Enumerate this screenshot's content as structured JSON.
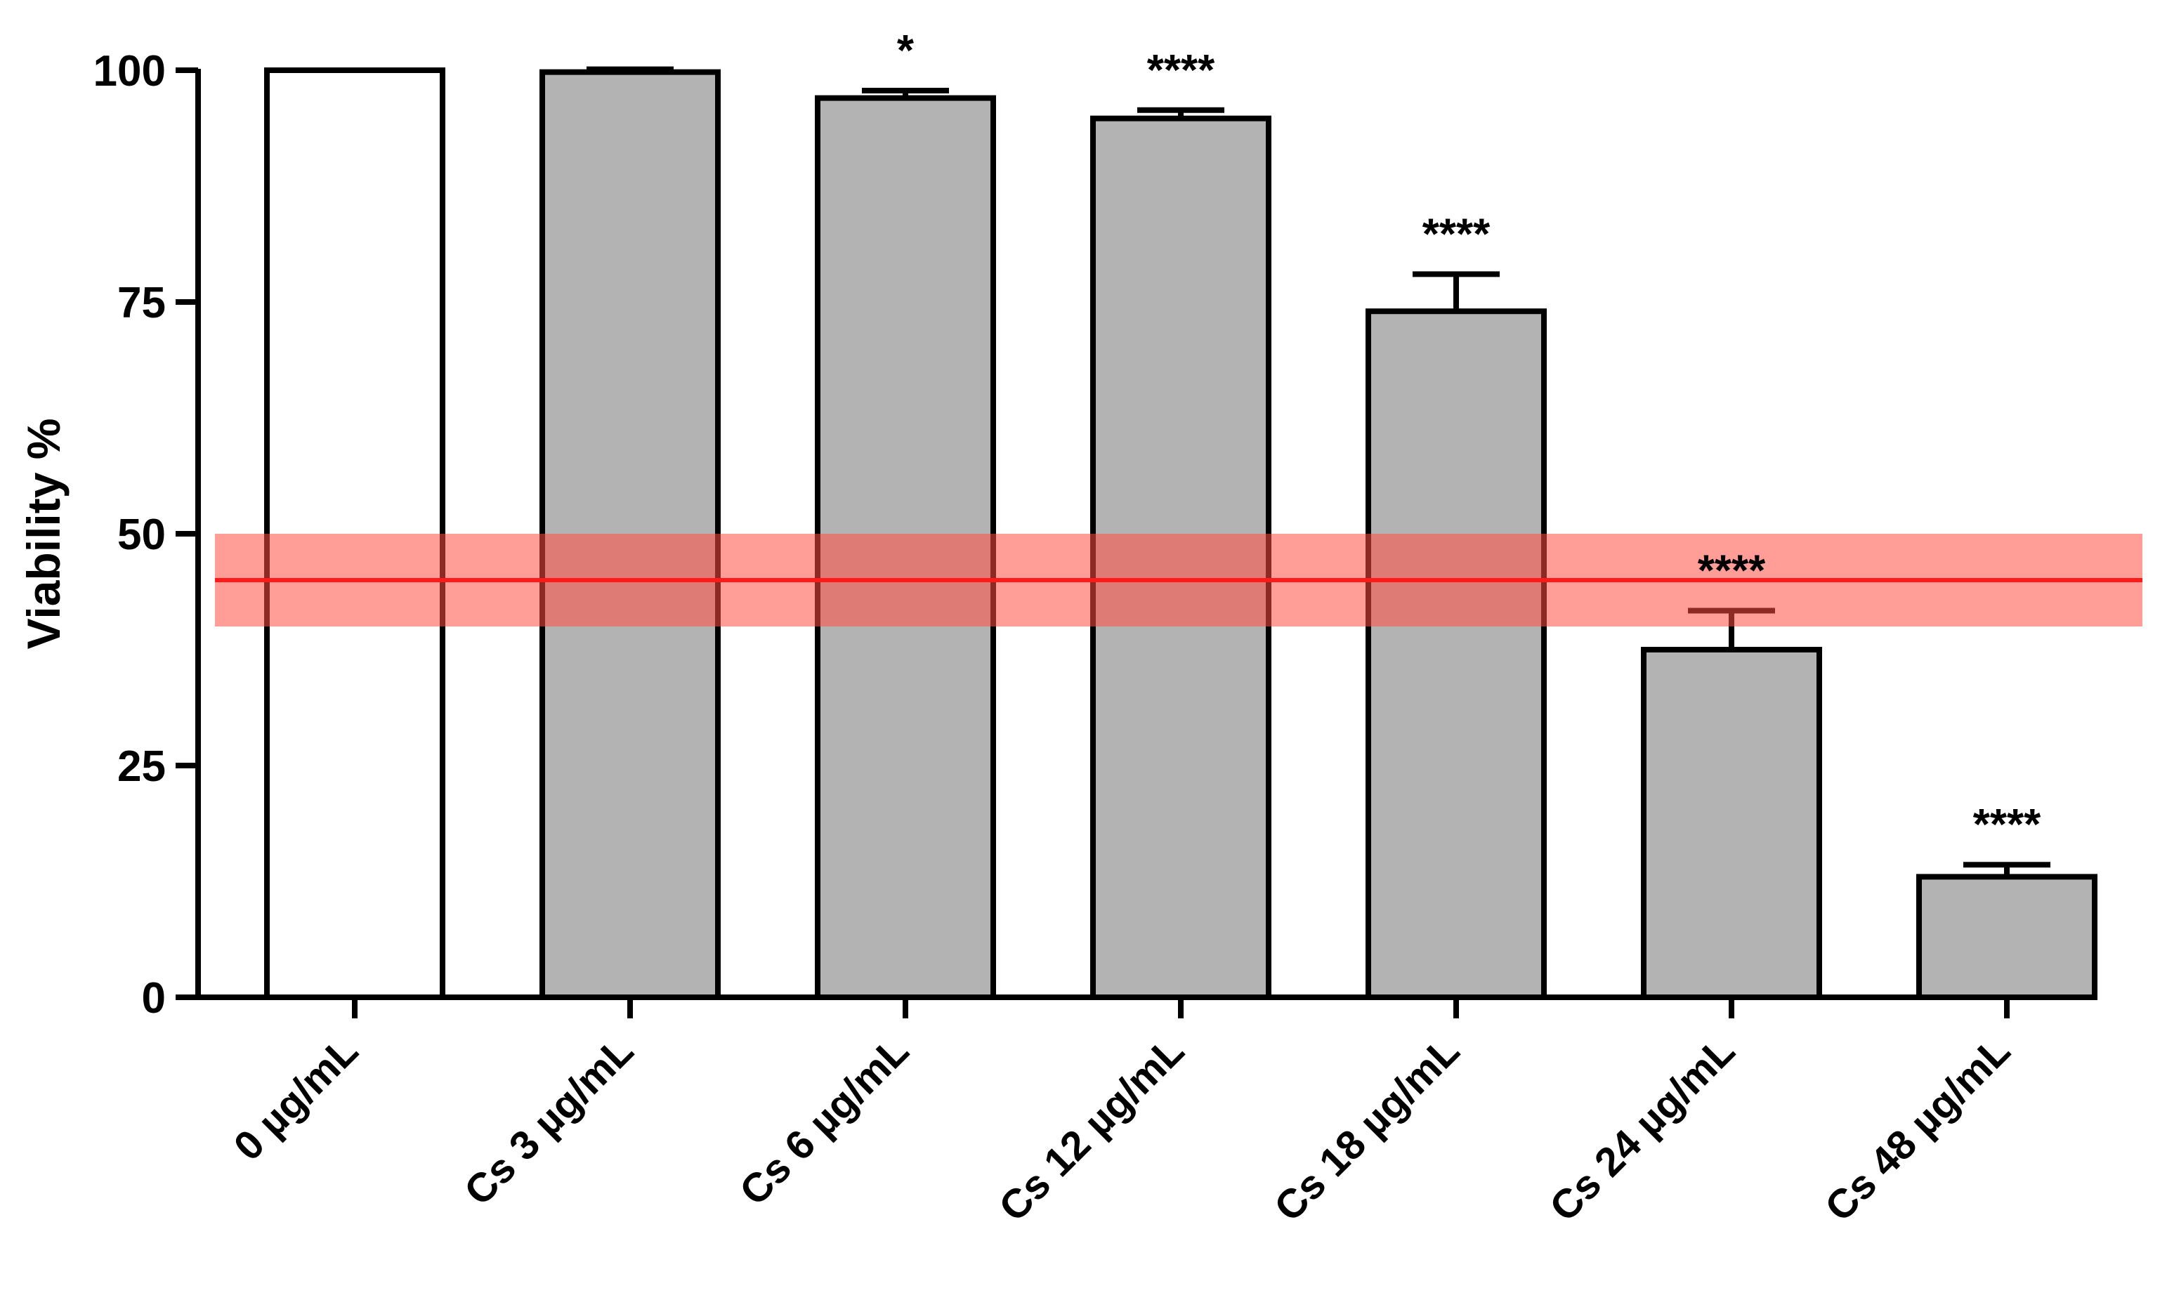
{
  "chart_data": {
    "type": "bar",
    "title": "",
    "xlabel": "",
    "ylabel": "Viability %",
    "ylim": [
      0,
      100
    ],
    "yticks": [
      0,
      25,
      50,
      75,
      100
    ],
    "grid": false,
    "legend": "none",
    "categories": [
      "0 µg/mL",
      "Cs 3 µg/mL",
      "Cs 6 µg/mL",
      "Cs 12 µg/mL",
      "Cs 18 µg/mL",
      "Cs 24 µg/mL",
      "Cs 48 µg/mL"
    ],
    "values": [
      100,
      99.8,
      97,
      94.8,
      74,
      37.5,
      13
    ],
    "error_upper": [
      0,
      0.3,
      0.8,
      0.9,
      4,
      4.2,
      1.3
    ],
    "significance": [
      "",
      "",
      "*",
      "****",
      "****",
      "****",
      "****"
    ],
    "bar_colors": [
      "#ffffff",
      "#b3b3b3",
      "#b3b3b3",
      "#b3b3b3",
      "#b3b3b3",
      "#b3b3b3",
      "#b3b3b3"
    ],
    "reference_line": {
      "value": 45,
      "band": [
        40,
        50
      ],
      "line_color": "#ff1a1a",
      "band_color": "#ff4d40"
    }
  }
}
